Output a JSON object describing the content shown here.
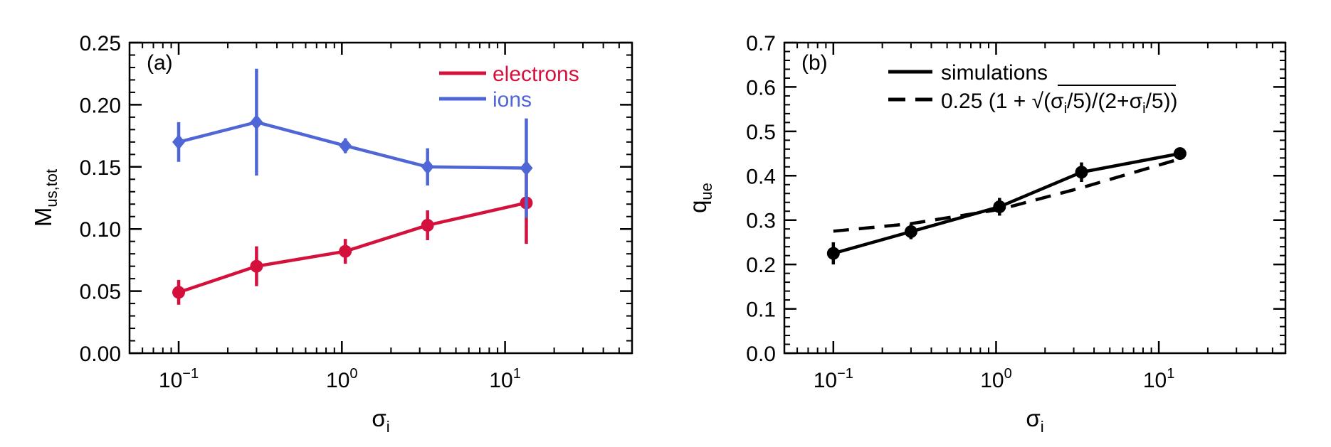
{
  "chart_data": [
    {
      "type": "line",
      "panel_label": "(a)",
      "xlabel": "σ",
      "xlabel_sub": "i",
      "ylabel": "M",
      "ylabel_sub": "us,tot",
      "x_scale": "log",
      "xlim": [
        0.05,
        60
      ],
      "ylim": [
        0.0,
        0.25
      ],
      "yticks": [
        "0.00",
        "0.05",
        "0.10",
        "0.15",
        "0.20",
        "0.25"
      ],
      "xticks": [
        {
          "base": "10",
          "exp": "−1"
        },
        {
          "base": "10",
          "exp": "0"
        },
        {
          "base": "10",
          "exp": "1"
        }
      ],
      "legend_position": "top-right",
      "series": [
        {
          "name": "electrons",
          "color": "#d4103c",
          "marker": "circle",
          "x": [
            0.1,
            0.3,
            1.05,
            3.35,
            13.5
          ],
          "y": [
            0.049,
            0.07,
            0.082,
            0.103,
            0.121
          ],
          "yerr": [
            0.01,
            0.016,
            0.01,
            0.012,
            0.033
          ]
        },
        {
          "name": "ions",
          "color": "#4f67d6",
          "marker": "diamond",
          "x": [
            0.1,
            0.3,
            1.05,
            3.35,
            13.5
          ],
          "y": [
            0.17,
            0.186,
            0.167,
            0.15,
            0.149
          ],
          "yerr": [
            0.016,
            0.043,
            0.006,
            0.015,
            0.04
          ]
        }
      ]
    },
    {
      "type": "line",
      "panel_label": "(b)",
      "xlabel": "σ",
      "xlabel_sub": "i",
      "ylabel": "q",
      "ylabel_sub": "ue",
      "x_scale": "log",
      "xlim": [
        0.05,
        60
      ],
      "ylim": [
        0.0,
        0.7
      ],
      "yticks": [
        "0.0",
        "0.1",
        "0.2",
        "0.3",
        "0.4",
        "0.5",
        "0.6",
        "0.7"
      ],
      "xticks": [
        {
          "base": "10",
          "exp": "−1"
        },
        {
          "base": "10",
          "exp": "0"
        },
        {
          "base": "10",
          "exp": "1"
        }
      ],
      "legend_position": "top-left",
      "series": [
        {
          "name": "simulations",
          "color": "#000000",
          "style": "solid",
          "marker": "circle",
          "x": [
            0.1,
            0.3,
            1.05,
            3.35,
            13.5
          ],
          "y": [
            0.225,
            0.274,
            0.33,
            0.408,
            0.45
          ],
          "yerr": [
            0.025,
            0.017,
            0.02,
            0.022,
            0.005
          ]
        },
        {
          "name": "0.25 (1 + √(σi/5)/(2+σi/5))",
          "color": "#000000",
          "style": "dashed",
          "x": [
            0.1,
            0.3,
            1.05,
            3.35,
            13.5
          ],
          "y": [
            0.275,
            0.292,
            0.324,
            0.373,
            0.438
          ]
        }
      ]
    }
  ],
  "legend_b_formula": {
    "prefix": "0.25 (1 + ",
    "radicand": [
      "(σ",
      "i",
      "/5)"
    ],
    "after": [
      "/(2+σ",
      "i",
      "/5))"
    ]
  }
}
